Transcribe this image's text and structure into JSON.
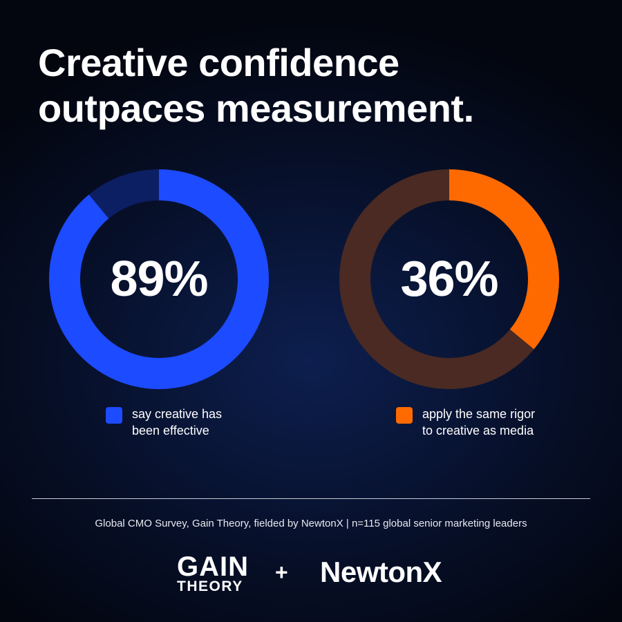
{
  "title": {
    "line1": "Creative confidence",
    "line2": "outpaces measurement."
  },
  "chart_data": [
    {
      "type": "pie",
      "style": "donut",
      "value_label": "89%",
      "values": [
        89,
        11
      ],
      "colors": [
        "#1d4bff",
        "#0c1f63"
      ],
      "legend": {
        "line1": "say creative has",
        "line2": "been effective",
        "color": "#1d4bff"
      }
    },
    {
      "type": "pie",
      "style": "donut",
      "value_label": "36%",
      "values": [
        36,
        64
      ],
      "colors": [
        "#ff6a00",
        "#4a2a22"
      ],
      "legend": {
        "line1": "apply the same rigor",
        "line2": "to creative as media",
        "color": "#ff6a00"
      }
    }
  ],
  "footer": {
    "source": "Global CMO Survey, Gain Theory, fielded by NewtonX | n=115 global senior marketing leaders",
    "logo_gain_line1": "GAIN",
    "logo_gain_line2": "THEORY",
    "plus": "+",
    "logo_newtonx": "NewtonX"
  }
}
